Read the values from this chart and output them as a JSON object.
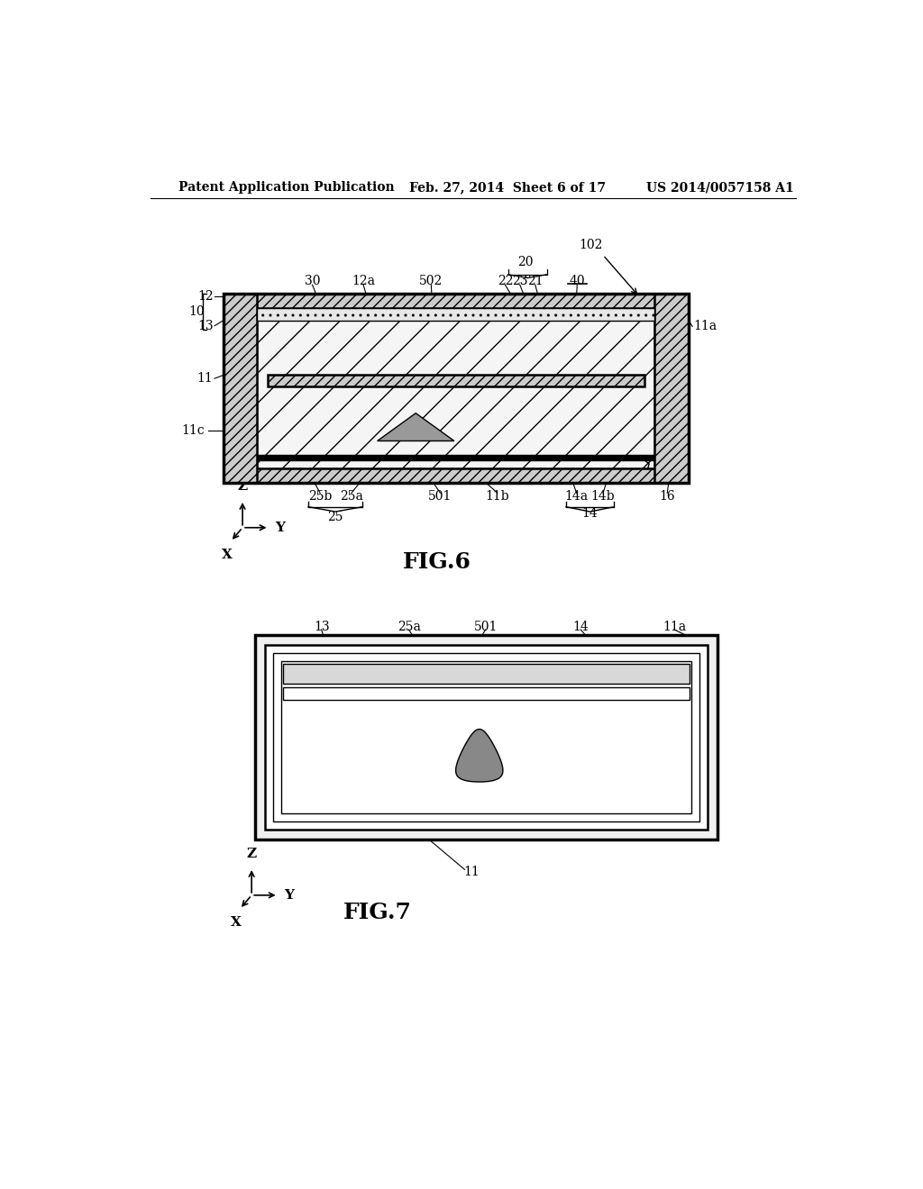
{
  "background_color": "#ffffff",
  "header_left": "Patent Application Publication",
  "header_center": "Feb. 27, 2014  Sheet 6 of 17",
  "header_right": "US 2014/0057158 A1",
  "fig6_title": "FIG.6",
  "fig7_title": "FIG.7",
  "header_fontsize": 10,
  "fig_title_fontsize": 18,
  "label_fontsize": 10
}
